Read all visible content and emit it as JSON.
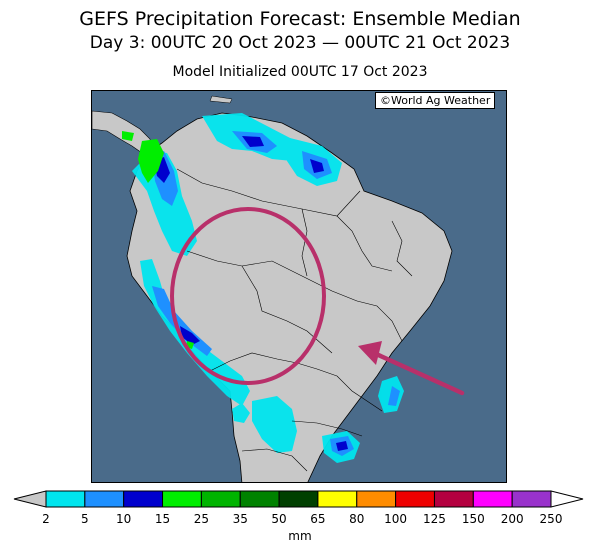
{
  "header": {
    "title": "GEFS Precipitation Forecast: Ensemble Median",
    "subtitle": "Day 3: 00UTC 20 Oct 2023 — 00UTC 21 Oct 2023",
    "init": "Model Initialized 00UTC 17 Oct 2023"
  },
  "map": {
    "copyright": "©World Ag Weather",
    "ocean_color": "#4a6b8a",
    "land_color": "#c8c8c8",
    "highlight_color": "#b8306a"
  },
  "colorbar": {
    "units": "mm",
    "bins": [
      {
        "from": "2",
        "color": "#00e5ee"
      },
      {
        "from": "5",
        "color": "#1e90ff"
      },
      {
        "from": "10",
        "color": "#0000cd"
      },
      {
        "from": "15",
        "color": "#00ee00"
      },
      {
        "from": "25",
        "color": "#00b400"
      },
      {
        "from": "35",
        "color": "#008200"
      },
      {
        "from": "50",
        "color": "#004000"
      },
      {
        "from": "65",
        "color": "#ffff00"
      },
      {
        "from": "80",
        "color": "#ff8c00"
      },
      {
        "from": "100",
        "color": "#ee0000"
      },
      {
        "from": "125",
        "color": "#b40040"
      },
      {
        "from": "150",
        "color": "#ff00ff"
      },
      {
        "from": "200",
        "color": "#9932cc"
      }
    ],
    "labels": [
      "2",
      "5",
      "10",
      "15",
      "25",
      "35",
      "50",
      "65",
      "80",
      "100",
      "125",
      "150",
      "200",
      "250"
    ],
    "under_color": "#c8c8c8",
    "over_color": "#ffffff"
  }
}
